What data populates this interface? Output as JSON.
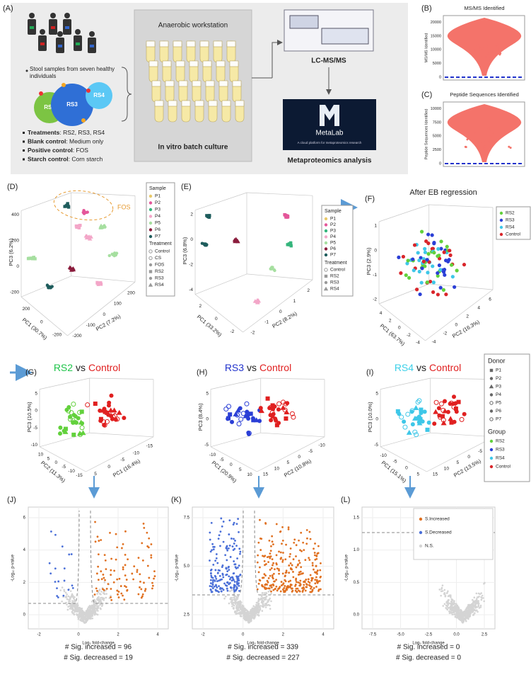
{
  "figure": {
    "a": {
      "label": "(A)",
      "donors_note": "Stool samples from seven healthy individuals",
      "substrates": [
        "RS2",
        "RS3",
        "RS4"
      ],
      "workstation": "Anaerobic workstation",
      "culture": "In vitro batch culture",
      "instrument": "LC-MS/MS",
      "software": "MetaLab",
      "software_tagline": "A cloud platform for metaproteomics research",
      "analysis": "Metaproteomics analysis",
      "conditions": [
        {
          "name": "Treatments",
          "detail": ": RS2, RS3, RS4"
        },
        {
          "name": "Blank control",
          "detail": ": Medium only"
        },
        {
          "name": "Positive control",
          "detail": ": FOS"
        },
        {
          "name": "Starch control",
          "detail": ": Corn starch"
        }
      ]
    },
    "b": {
      "label": "(B)",
      "title": "MS/MS Identified",
      "y_label": "MS/MS Identified",
      "yticks": [
        "0",
        "5000",
        "10000",
        "15000",
        "20000"
      ]
    },
    "c": {
      "label": "(C)",
      "title": "Peptide Sequences Identified",
      "y_label": "Peptide Sequences Identified",
      "yticks": [
        "0",
        "2500",
        "5000",
        "7500",
        "10000"
      ]
    },
    "d": {
      "label": "(D)",
      "annotation": "FOS",
      "z_label": "PC3 (6.2%)",
      "x_label": "PC1 (30.7%)",
      "y_label": "PC2 (7.2%)",
      "z_ticks": [
        "400",
        "200",
        "0",
        "-200"
      ],
      "x_ticks": [
        "200",
        "0",
        "-200"
      ],
      "y_ticks": [
        "-200",
        "-100",
        "0",
        "100",
        "200"
      ],
      "legend": {
        "sample_title": "Sample",
        "samples": [
          "P1",
          "P2",
          "P3",
          "P4",
          "P5",
          "P6",
          "P7"
        ],
        "treatment_title": "Treatment",
        "treatments": [
          "Control",
          "CS",
          "FOS",
          "RS2",
          "RS3",
          "RS4"
        ]
      }
    },
    "e": {
      "label": "(E)",
      "z_label": "PC3 (6.8%)",
      "x_label": "PC1 (33.2%)",
      "y_label": "PC2 (8.2%)",
      "z_ticks": [
        "2",
        "0",
        "-2",
        "-4"
      ],
      "x_ticks": [
        "2",
        "0",
        "-2"
      ],
      "y_ticks": [
        "-2",
        "-1",
        "0",
        "1",
        "2"
      ],
      "legend": {
        "sample_title": "Sample",
        "samples": [
          "P1",
          "P2",
          "P3",
          "P4",
          "P5",
          "P6",
          "P7"
        ],
        "treatment_title": "Treatment",
        "treatments": [
          "Control",
          "RS2",
          "RS3",
          "RS4"
        ]
      }
    },
    "f": {
      "label": "(F)",
      "title": "After EB regression",
      "z_label": "PC3 (2.9%)",
      "x_label": "PC1 (63.7%)",
      "y_label": "PC2 (16.3%)",
      "z_ticks": [
        "1",
        "0",
        "-1",
        "-2"
      ],
      "x_ticks": [
        "4",
        "2",
        "0",
        "-2",
        "-4"
      ],
      "y_ticks": [
        "-4",
        "-2",
        "0",
        "2",
        "4",
        "6"
      ],
      "legend": [
        "RS2",
        "RS3",
        "RS4",
        "Control"
      ]
    },
    "g": {
      "label": "(G)",
      "title_left": "RS2",
      "title_mid": "vs",
      "title_right": "Control",
      "z_label": "PC3 (10.5%)",
      "x_label": "PC2 (11.3%)",
      "y_label": "PC1 (16.4%)",
      "z_ticks": [
        "5",
        "0",
        "-5",
        "-10"
      ],
      "x_ticks": [
        "10",
        "5",
        "0",
        "-5",
        "-10",
        "-15"
      ],
      "y_ticks": [
        "5",
        "0",
        "-5",
        "-10",
        "-15"
      ]
    },
    "h": {
      "label": "(H)",
      "title_left": "RS3",
      "title_mid": "vs",
      "title_right": "Control",
      "z_label": "PC3 (8.4%)",
      "x_label": "PC1 (20.9%)",
      "y_label": "PC2 (10.8%)",
      "z_ticks": [
        "5",
        "0",
        "-5"
      ],
      "x_ticks": [
        "-10",
        "-5",
        "0",
        "5",
        "10"
      ],
      "y_ticks": [
        "15",
        "10",
        "5",
        "0",
        "-5",
        "-10"
      ]
    },
    "i": {
      "label": "(I)",
      "title_left": "RS4",
      "title_mid": "vs",
      "title_right": "Control",
      "z_label": "PC3 (10.0%)",
      "x_label": "PC1 (15.1%)",
      "y_label": "PC2 (13.5%)",
      "z_ticks": [
        "5",
        "0",
        "-5"
      ],
      "x_ticks": [
        "-10",
        "-5",
        "0",
        "5"
      ],
      "y_ticks": [
        "15",
        "10",
        "5",
        "0",
        "-5",
        "-10"
      ]
    },
    "donor_legend": {
      "donor_title": "Donor",
      "donors": [
        "P1",
        "P2",
        "P3",
        "P4",
        "P5",
        "P6",
        "P7"
      ],
      "group_title": "Group",
      "groups": [
        "RS2",
        "RS3",
        "RS4",
        "Control"
      ]
    },
    "j": {
      "label": "(J)",
      "y_label": "-Log₁₀ p-value",
      "x_label": "Log₂ fold-change",
      "yticks": [
        "0",
        "2",
        "4",
        "6"
      ],
      "xticks": [
        "-2",
        "0",
        "2",
        "4"
      ],
      "increased": "# Sig. increased = 96",
      "decreased": "# Sig. decreased = 19"
    },
    "k": {
      "label": "(K)",
      "y_label": "-Log₁₀ p-value",
      "x_label": "Log₂ fold-change",
      "yticks": [
        "2.5",
        "5.0",
        "7.5"
      ],
      "xticks": [
        "-2",
        "0",
        "2",
        "4"
      ],
      "increased": "# Sig. increased = 339",
      "decreased": "# Sig. decreased = 227"
    },
    "l": {
      "label": "(L)",
      "y_label": "-Log₁₀ p-value",
      "x_label": "Log₂ fold-change",
      "yticks": [
        "0.0",
        "0.5",
        "1.0",
        "1.5"
      ],
      "xticks": [
        "-7.5",
        "-5.0",
        "-2.5",
        "0.0",
        "2.5"
      ],
      "increased": "# Sig. increased = 0",
      "decreased": "# Sig. decreased = 0",
      "legend": [
        "S.Increased",
        "S.Decreased",
        "N.S."
      ]
    }
  }
}
